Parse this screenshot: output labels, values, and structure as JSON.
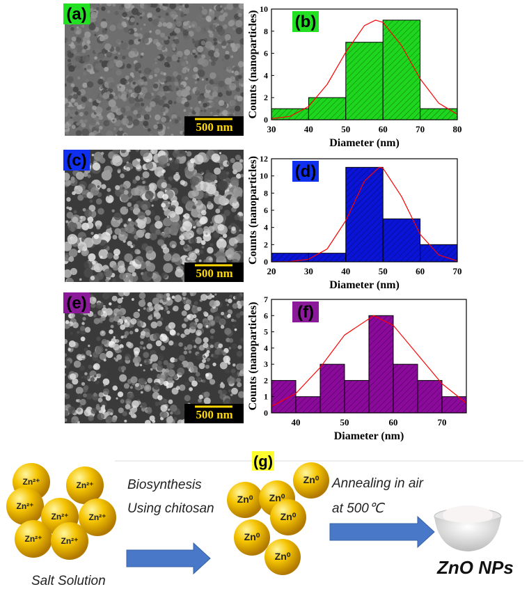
{
  "chart_data": [
    {
      "type": "histogram",
      "panel_label": "(b)",
      "label_color": "#22e022",
      "color": "#1fd61f",
      "x_label": "Diameter (nm)",
      "y_label": "Counts (nanoparticles)",
      "bins": [
        30,
        40,
        50,
        60,
        70,
        80
      ],
      "values": [
        1,
        2,
        7,
        9,
        1
      ],
      "xlim": [
        30,
        80
      ],
      "xticks": [
        30,
        40,
        50,
        60,
        70,
        80
      ],
      "ylim": [
        0,
        10
      ],
      "yticks": [
        0,
        2,
        4,
        6,
        8,
        10
      ],
      "fit": {
        "color": "#ff0000",
        "x": [
          30,
          35,
          40,
          45,
          50,
          55,
          58,
          60,
          65,
          70,
          75,
          80
        ],
        "values": [
          0.1,
          0.3,
          1.2,
          3.2,
          6.1,
          8.5,
          9,
          8.8,
          6.7,
          3.7,
          1.5,
          0.5
        ]
      }
    },
    {
      "type": "histogram",
      "panel_label": "(d)",
      "label_color": "#1030f0",
      "color": "#0a14d6",
      "x_label": "Diameter (nm)",
      "y_label": "Counts (nanoparticles)",
      "bins": [
        20,
        30,
        40,
        50,
        60,
        70
      ],
      "values": [
        1,
        1,
        11,
        5,
        2
      ],
      "xlim": [
        20,
        70
      ],
      "xticks": [
        20,
        30,
        40,
        50,
        60,
        70
      ],
      "ylim": [
        0,
        12
      ],
      "yticks": [
        0,
        2,
        4,
        6,
        8,
        10,
        12
      ],
      "fit": {
        "color": "#ff0000",
        "x": [
          20,
          25,
          30,
          35,
          40,
          45,
          49,
          50,
          55,
          60,
          65,
          70
        ],
        "values": [
          0,
          0.03,
          0.3,
          1.5,
          4.8,
          9.4,
          11,
          10.9,
          7.6,
          3.2,
          0.8,
          0.1
        ]
      }
    },
    {
      "type": "histogram",
      "panel_label": "(f)",
      "label_color": "#8a1a9a",
      "color": "#8b0a9c",
      "x_label": "Diameter (nm)",
      "y_label": "Counts (nanoparticles)",
      "bins": [
        35,
        40,
        45,
        50,
        55,
        60,
        65,
        70,
        75
      ],
      "values": [
        2,
        1,
        3,
        2,
        6,
        3,
        2,
        1
      ],
      "xlim": [
        35,
        75
      ],
      "xticks": [
        40,
        50,
        60,
        70
      ],
      "ylim": [
        0,
        7
      ],
      "yticks": [
        0,
        1,
        2,
        3,
        4,
        5,
        6,
        7
      ],
      "fit": {
        "color": "#ff0000",
        "x": [
          35,
          40,
          45,
          50,
          56,
          60,
          65,
          70,
          75
        ],
        "values": [
          0.4,
          1.2,
          2.8,
          4.8,
          6,
          5.4,
          3.6,
          1.8,
          0.6
        ]
      }
    }
  ],
  "sem_panels": [
    {
      "label": "(a)",
      "label_color": "#22e022",
      "scale_bar": "500 nm"
    },
    {
      "label": "(c)",
      "label_color": "#1030f0",
      "scale_bar": "500 nm"
    },
    {
      "label": "(e)",
      "label_color": "#8a1a9a",
      "scale_bar": "500 nm"
    }
  ],
  "schematic": {
    "label": "(g)",
    "step1": [
      "Biosynthesis",
      "Using chitosan"
    ],
    "step2": [
      "Annealing in air",
      "at 500℃"
    ],
    "start": "Salt Solution",
    "product": "ZnO NPs",
    "ions": [
      "Zn²⁺",
      "Zn²⁺",
      "Zn²⁺",
      "Zn²⁺",
      "Zn²⁺",
      "Zn²⁺",
      "Zn²⁺"
    ],
    "atoms": [
      "Zn⁰",
      "Zn⁰",
      "Zn⁰",
      "Zn⁰",
      "Zn⁰",
      "Zn⁰"
    ]
  }
}
